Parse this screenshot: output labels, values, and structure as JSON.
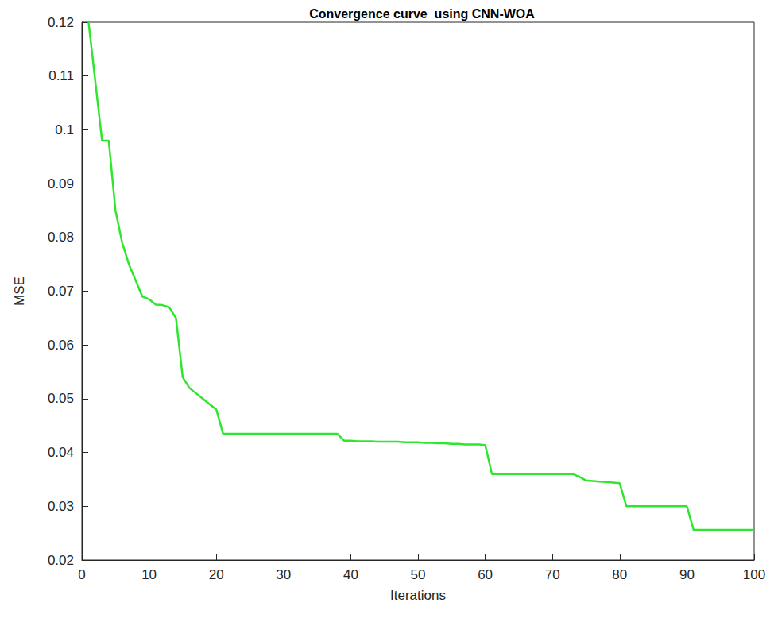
{
  "chart_data": {
    "type": "line",
    "title": "Convergence curve  using CNN-WOA",
    "x_label": "Iterations",
    "y_label": "MSE",
    "x": [
      1,
      2,
      3,
      4,
      5,
      6,
      7,
      8,
      9,
      10,
      11,
      12,
      13,
      14,
      15,
      16,
      17,
      18,
      19,
      20,
      21,
      22,
      23,
      24,
      25,
      26,
      27,
      28,
      29,
      30,
      31,
      32,
      33,
      34,
      35,
      36,
      37,
      38,
      39,
      40,
      41,
      42,
      43,
      44,
      45,
      46,
      47,
      48,
      49,
      50,
      51,
      52,
      53,
      54,
      55,
      56,
      57,
      58,
      59,
      60,
      61,
      62,
      63,
      64,
      65,
      66,
      67,
      68,
      69,
      70,
      71,
      72,
      73,
      74,
      75,
      76,
      77,
      78,
      79,
      80,
      81,
      82,
      83,
      84,
      85,
      86,
      87,
      88,
      89,
      90,
      91,
      92,
      93,
      94,
      95,
      96,
      97,
      98,
      99,
      100
    ],
    "values": [
      0.12,
      0.109,
      0.098,
      0.098,
      0.085,
      0.079,
      0.075,
      0.072,
      0.069,
      0.0685,
      0.0675,
      0.0674,
      0.067,
      0.065,
      0.054,
      0.052,
      0.051,
      0.05,
      0.049,
      0.048,
      0.0435,
      0.0435,
      0.0435,
      0.0435,
      0.0435,
      0.0435,
      0.0435,
      0.0435,
      0.0435,
      0.0435,
      0.0435,
      0.0435,
      0.0435,
      0.0435,
      0.0435,
      0.0435,
      0.0435,
      0.0435,
      0.0422,
      0.0422,
      0.0421,
      0.0421,
      0.0421,
      0.042,
      0.042,
      0.042,
      0.042,
      0.0419,
      0.0419,
      0.0419,
      0.0418,
      0.0418,
      0.0417,
      0.0417,
      0.0416,
      0.0416,
      0.0415,
      0.0415,
      0.0415,
      0.0414,
      0.036,
      0.036,
      0.036,
      0.036,
      0.036,
      0.036,
      0.036,
      0.036,
      0.036,
      0.036,
      0.036,
      0.036,
      0.036,
      0.0355,
      0.0348,
      0.0347,
      0.0346,
      0.0345,
      0.0344,
      0.0343,
      0.03,
      0.03,
      0.03,
      0.03,
      0.03,
      0.03,
      0.03,
      0.03,
      0.03,
      0.03,
      0.0256,
      0.0256,
      0.0256,
      0.0256,
      0.0256,
      0.0256,
      0.0256,
      0.0256,
      0.0256,
      0.0256
    ],
    "color": "#2ee62e",
    "xlim": [
      0,
      100
    ],
    "xticks": [
      0,
      10,
      20,
      30,
      40,
      50,
      60,
      70,
      80,
      90,
      100
    ],
    "ylim": [
      0.02,
      0.12
    ],
    "yticks": [
      0.02,
      0.03,
      0.04,
      0.05,
      0.06,
      0.07,
      0.08,
      0.09,
      0.1,
      0.11,
      0.12
    ],
    "grid": false
  }
}
